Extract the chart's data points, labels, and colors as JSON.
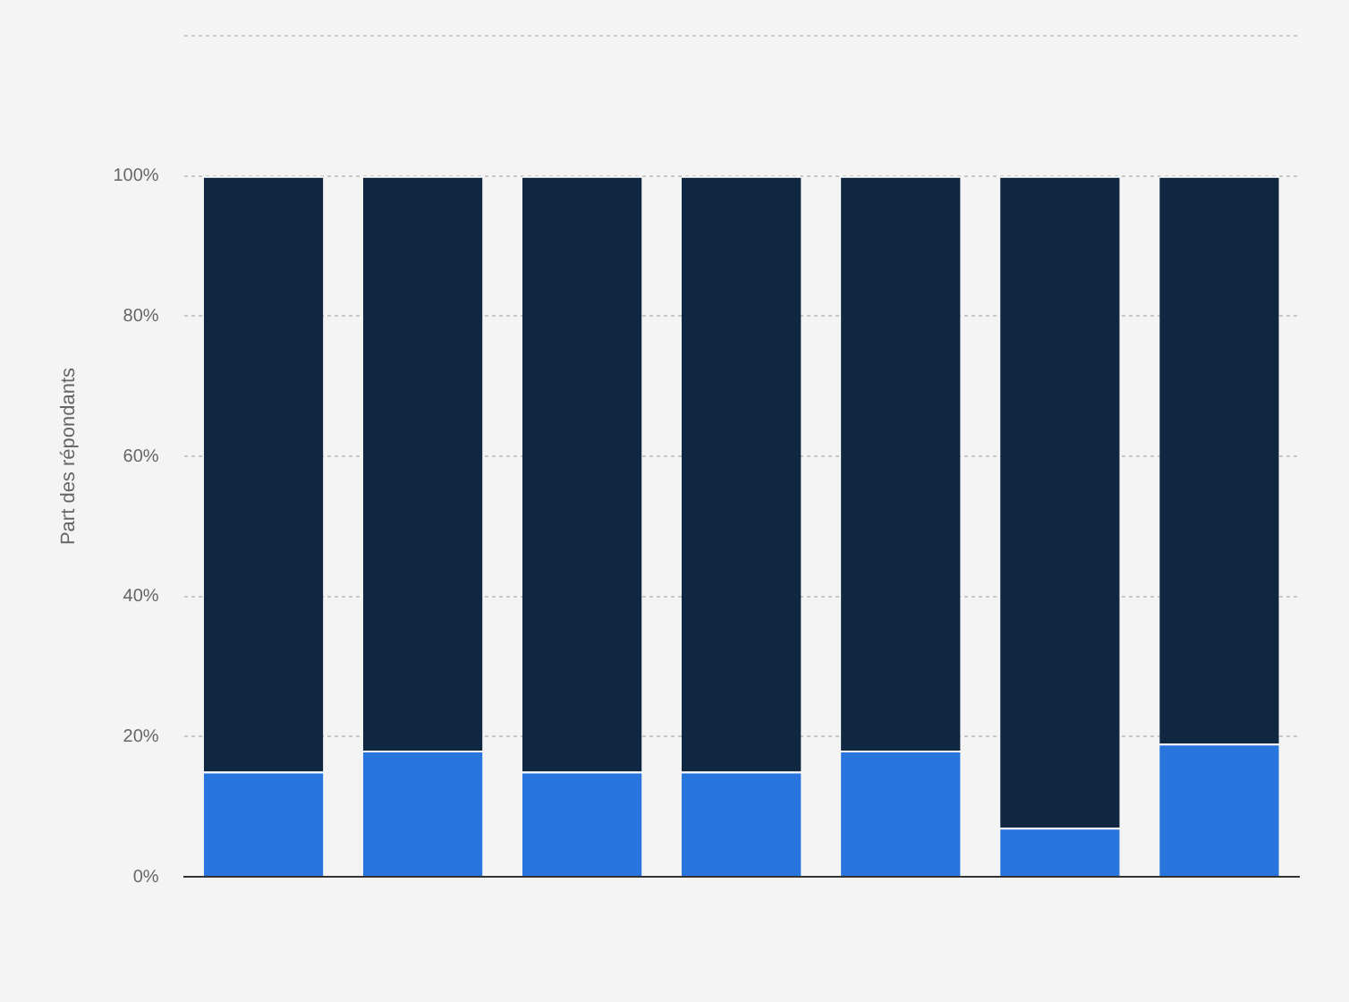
{
  "chart_data": {
    "type": "bar",
    "ylabel": "Part des répondants",
    "categories": [
      null,
      null,
      null,
      null,
      null,
      null,
      null
    ],
    "stacked": true,
    "series": [
      {
        "color": "#2876dd",
        "values": [
          15,
          18,
          15,
          15,
          18,
          7,
          19
        ]
      },
      {
        "color": "#0f2740",
        "values": [
          85,
          82,
          85,
          85,
          82,
          93,
          81
        ]
      }
    ],
    "ylim": [
      0,
      120
    ],
    "yticks": [
      {
        "value": 0,
        "label": "0%"
      },
      {
        "value": 20,
        "label": "20%"
      },
      {
        "value": 40,
        "label": "40%"
      },
      {
        "value": 60,
        "label": "60%"
      },
      {
        "value": 80,
        "label": "80%"
      },
      {
        "value": 100,
        "label": "100%"
      },
      {
        "value": 120,
        "label": null
      }
    ],
    "grid": "y",
    "tick_labels": "y",
    "legend": false
  }
}
